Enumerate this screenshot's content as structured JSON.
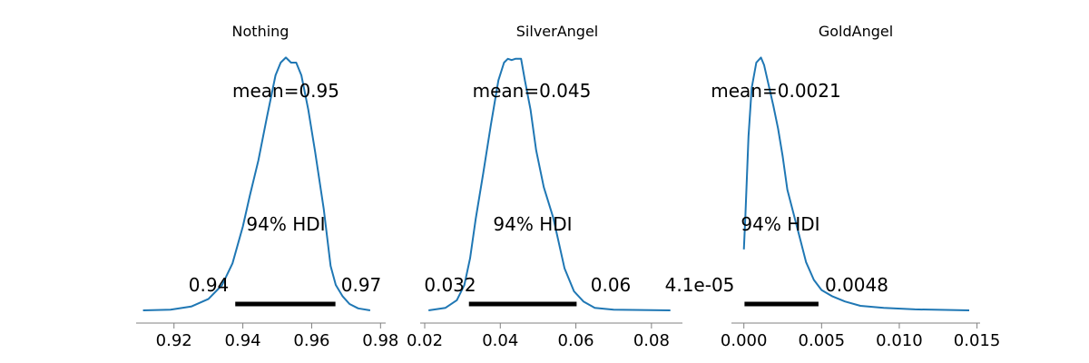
{
  "chart_data": [
    {
      "type": "line",
      "title": "Nothing",
      "mean_label": "mean=0.95",
      "hdi_label": "94% HDI",
      "hdi_low_label": "0.94",
      "hdi_high_label": "0.97",
      "hdi": [
        0.9378,
        0.9669
      ],
      "xlim": [
        0.909,
        0.9815
      ],
      "xticks": [
        0.92,
        0.94,
        0.96,
        0.98
      ],
      "xtick_labels": [
        "0.92",
        "0.94",
        "0.96",
        "0.98"
      ],
      "ylim": [
        0,
        1.0
      ],
      "x": [
        0.911,
        0.919,
        0.925,
        0.93,
        0.934,
        0.937,
        0.94,
        0.942,
        0.9445,
        0.947,
        0.9495,
        0.951,
        0.9525,
        0.954,
        0.9555,
        0.957,
        0.959,
        0.961,
        0.9635,
        0.9655,
        0.967,
        0.969,
        0.971,
        0.9735,
        0.977
      ],
      "values": [
        0.0,
        0.003,
        0.015,
        0.045,
        0.1,
        0.185,
        0.33,
        0.45,
        0.59,
        0.76,
        0.925,
        0.975,
        0.995,
        0.975,
        0.975,
        0.925,
        0.79,
        0.625,
        0.4,
        0.175,
        0.1,
        0.055,
        0.025,
        0.008,
        0.0
      ]
    },
    {
      "type": "line",
      "title": "SilverAngel",
      "mean_label": "mean=0.045",
      "hdi_label": "94% HDI",
      "hdi_low_label": "0.032",
      "hdi_high_label": "0.06",
      "hdi": [
        0.0317,
        0.0602
      ],
      "xlim": [
        0.0188,
        0.0882
      ],
      "xticks": [
        0.02,
        0.04,
        0.06,
        0.08
      ],
      "xtick_labels": [
        "0.02",
        "0.04",
        "0.06",
        "0.08"
      ],
      "ylim": [
        0,
        1.0
      ],
      "x": [
        0.021,
        0.0255,
        0.0285,
        0.0305,
        0.032,
        0.0335,
        0.0355,
        0.0375,
        0.0395,
        0.041,
        0.042,
        0.043,
        0.044,
        0.0455,
        0.0465,
        0.048,
        0.0495,
        0.0515,
        0.054,
        0.057,
        0.0595,
        0.062,
        0.065,
        0.07,
        0.085
      ],
      "values": [
        0.0,
        0.01,
        0.04,
        0.1,
        0.205,
        0.36,
        0.54,
        0.73,
        0.905,
        0.975,
        0.99,
        0.985,
        0.99,
        0.99,
        0.905,
        0.79,
        0.63,
        0.485,
        0.365,
        0.165,
        0.075,
        0.035,
        0.01,
        0.003,
        0.0
      ]
    },
    {
      "type": "line",
      "title": "GoldAngel",
      "mean_label": "mean=0.0021",
      "hdi_label": "94% HDI",
      "hdi_low_label": "4.1e-05",
      "hdi_high_label": "0.0048",
      "hdi": [
        4.1e-05,
        0.0048
      ],
      "xlim": [
        -0.0008,
        0.0152
      ],
      "xticks": [
        0.0,
        0.005,
        0.01,
        0.015
      ],
      "xtick_labels": [
        "0.000",
        "0.005",
        "0.010",
        "0.015"
      ],
      "ylim": [
        0,
        1.0
      ],
      "x": [
        0.0,
        0.0001,
        0.0003,
        0.0005,
        0.0008,
        0.0011,
        0.0013,
        0.0016,
        0.0019,
        0.0022,
        0.0025,
        0.0028,
        0.0032,
        0.0036,
        0.004,
        0.0045,
        0.005,
        0.0057,
        0.0065,
        0.0075,
        0.009,
        0.011,
        0.0145
      ],
      "values": [
        0.24,
        0.375,
        0.685,
        0.875,
        0.975,
        0.995,
        0.965,
        0.885,
        0.805,
        0.715,
        0.605,
        0.475,
        0.38,
        0.285,
        0.19,
        0.12,
        0.08,
        0.055,
        0.035,
        0.018,
        0.01,
        0.004,
        0.0
      ]
    }
  ]
}
